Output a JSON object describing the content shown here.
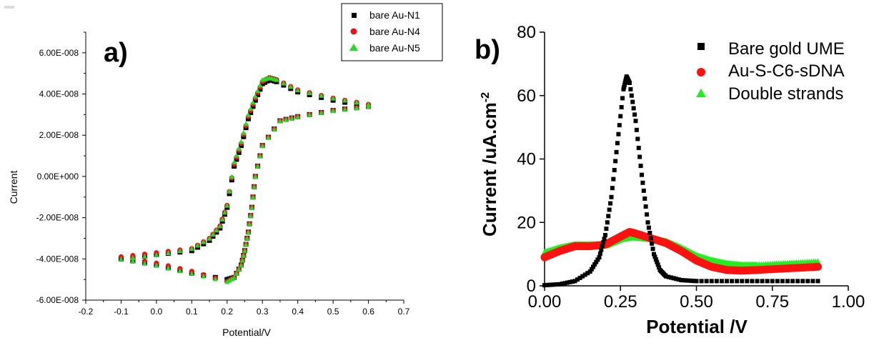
{
  "chart_data": [
    {
      "panel_label": "a)",
      "type": "scatter",
      "xlabel": "Potential/V",
      "ylabel": "Current",
      "xlim": [
        -0.2,
        0.7
      ],
      "ylim": [
        -6e-08,
        7e-08
      ],
      "x_ticks": [
        -0.2,
        -0.1,
        0.0,
        0.1,
        0.2,
        0.3,
        0.4,
        0.5,
        0.6,
        0.7
      ],
      "x_tick_labels": [
        "-0.2",
        "-0.1",
        "0.0",
        "0.1",
        "0.2",
        "0.3",
        "0.4",
        "0.5",
        "0.6",
        "0.7"
      ],
      "y_ticks": [
        -6e-08,
        -4e-08,
        -2e-08,
        0,
        2e-08,
        4e-08,
        6e-08
      ],
      "y_tick_labels": [
        "-6.00E-008",
        "-4.00E-008",
        "-2.00E-008",
        "0.00E+000",
        "2.00E-008",
        "4.00E-008",
        "6.00E-008"
      ],
      "legend_position": "top-right",
      "series": [
        {
          "name": "bare Au-N1",
          "color": "#000000",
          "marker": "square",
          "forward_x": [
            -0.1,
            0.0,
            0.1,
            0.15,
            0.18,
            0.2,
            0.22,
            0.24,
            0.26,
            0.28,
            0.3,
            0.32,
            0.34,
            0.4,
            0.5,
            0.6
          ],
          "forward_y": [
            -4e-08,
            -3.8e-08,
            -3.6e-08,
            -3.1e-08,
            -2.5e-08,
            -1.5e-08,
            5e-09,
            1.5e-08,
            2.8e-08,
            3.7e-08,
            4.5e-08,
            4.7e-08,
            4.6e-08,
            4.1e-08,
            3.7e-08,
            3.4e-08
          ],
          "reverse_x": [
            0.6,
            0.5,
            0.4,
            0.35,
            0.3,
            0.28,
            0.27,
            0.26,
            0.25,
            0.24,
            0.22,
            0.2,
            0.1,
            0.0,
            -0.1
          ],
          "reverse_y": [
            3.4e-08,
            3.2e-08,
            2.9e-08,
            2.7e-08,
            1.5e-08,
            0.0,
            -1.5e-08,
            -2.7e-08,
            -3.6e-08,
            -4.3e-08,
            -4.9e-08,
            -5e-08,
            -4.7e-08,
            -4.3e-08,
            -4e-08
          ]
        },
        {
          "name": "bare Au-N4",
          "color": "#e8141a",
          "marker": "circle",
          "forward_x": [
            -0.1,
            0.0,
            0.1,
            0.15,
            0.18,
            0.2,
            0.22,
            0.24,
            0.26,
            0.28,
            0.3,
            0.32,
            0.34,
            0.4,
            0.5,
            0.6
          ],
          "forward_y": [
            -3.9e-08,
            -3.7e-08,
            -3.5e-08,
            -3e-08,
            -2.4e-08,
            -1.4e-08,
            6e-09,
            1.6e-08,
            2.9e-08,
            3.8e-08,
            4.6e-08,
            4.8e-08,
            4.7e-08,
            4.2e-08,
            3.8e-08,
            3.5e-08
          ],
          "reverse_x": [
            0.6,
            0.5,
            0.4,
            0.35,
            0.3,
            0.28,
            0.27,
            0.26,
            0.25,
            0.24,
            0.22,
            0.2,
            0.1,
            0.0,
            -0.1
          ],
          "reverse_y": [
            3.4e-08,
            3.2e-08,
            2.9e-08,
            2.7e-08,
            1.5e-08,
            0.0,
            -1.5e-08,
            -2.7e-08,
            -3.6e-08,
            -4.3e-08,
            -4.9e-08,
            -5.1e-08,
            -4.6e-08,
            -4.2e-08,
            -3.9e-08
          ]
        },
        {
          "name": "bare Au-N5",
          "color": "#22dd22",
          "marker": "triangle",
          "forward_x": [
            -0.1,
            0.0,
            0.1,
            0.15,
            0.18,
            0.2,
            0.22,
            0.24,
            0.26,
            0.28,
            0.3,
            0.32,
            0.34,
            0.4,
            0.5,
            0.6
          ],
          "forward_y": [
            -4e-08,
            -3.8e-08,
            -3.5e-08,
            -3e-08,
            -2.4e-08,
            -1.4e-08,
            7e-09,
            1.7e-08,
            3e-08,
            3.9e-08,
            4.7e-08,
            4.8e-08,
            4.7e-08,
            4.2e-08,
            3.8e-08,
            3.5e-08
          ],
          "reverse_x": [
            0.6,
            0.5,
            0.4,
            0.35,
            0.3,
            0.28,
            0.27,
            0.26,
            0.25,
            0.24,
            0.22,
            0.2,
            0.1,
            0.0,
            -0.1
          ],
          "reverse_y": [
            3.4e-08,
            3.2e-08,
            2.9e-08,
            2.7e-08,
            1.5e-08,
            0.0,
            -1.5e-08,
            -2.7e-08,
            -3.6e-08,
            -4.3e-08,
            -4.9e-08,
            -5.1e-08,
            -4.7e-08,
            -4.3e-08,
            -4e-08
          ]
        }
      ]
    },
    {
      "panel_label": "b)",
      "type": "scatter",
      "xlabel": "Potential /V",
      "ylabel": "Current /uA.cm",
      "ylabel_superscript": "-2",
      "xlim": [
        0,
        1.0
      ],
      "ylim": [
        0,
        80
      ],
      "x_ticks": [
        0,
        0.25,
        0.5,
        0.75,
        1.0
      ],
      "x_tick_labels": [
        "0.00",
        "0.25",
        "0.50",
        "0.75",
        "1.00"
      ],
      "y_ticks": [
        0,
        20,
        40,
        60,
        80
      ],
      "y_tick_labels": [
        "0",
        "20",
        "40",
        "60",
        "80"
      ],
      "legend_position": "top-right",
      "series": [
        {
          "name": "Bare gold UME",
          "color": "#000000",
          "marker": "square",
          "x": [
            0.0,
            0.05,
            0.1,
            0.15,
            0.18,
            0.2,
            0.22,
            0.24,
            0.26,
            0.27,
            0.28,
            0.3,
            0.32,
            0.34,
            0.36,
            0.38,
            0.4,
            0.45,
            0.5,
            0.6,
            0.7,
            0.8,
            0.9
          ],
          "y": [
            0.2,
            0.5,
            1.5,
            4.5,
            9,
            16,
            28,
            45,
            62,
            66,
            64,
            52,
            35,
            20,
            10,
            5,
            3,
            1.8,
            1.5,
            1.5,
            1.5,
            1.5,
            1.5
          ]
        },
        {
          "name": "Au-S-C6-sDNA",
          "color": "#ff1111",
          "marker": "circle",
          "x": [
            0.0,
            0.05,
            0.1,
            0.15,
            0.2,
            0.25,
            0.28,
            0.3,
            0.35,
            0.4,
            0.45,
            0.5,
            0.55,
            0.6,
            0.65,
            0.7,
            0.8,
            0.9
          ],
          "y": [
            9,
            11,
            12.5,
            12.5,
            13,
            15.5,
            17,
            16.5,
            15,
            13.5,
            11,
            8,
            6,
            5,
            4.8,
            5,
            5.5,
            6
          ]
        },
        {
          "name": "Double strands",
          "color": "#22ee22",
          "marker": "triangle",
          "x": [
            0.0,
            0.05,
            0.1,
            0.15,
            0.2,
            0.25,
            0.28,
            0.3,
            0.35,
            0.4,
            0.45,
            0.5,
            0.55,
            0.6,
            0.65,
            0.7,
            0.8,
            0.9
          ],
          "y": [
            10.5,
            12,
            13,
            13,
            13,
            15,
            15.5,
            15.5,
            15,
            14,
            12,
            9.5,
            8,
            7,
            6.5,
            6.5,
            7,
            7.5
          ]
        }
      ]
    }
  ]
}
